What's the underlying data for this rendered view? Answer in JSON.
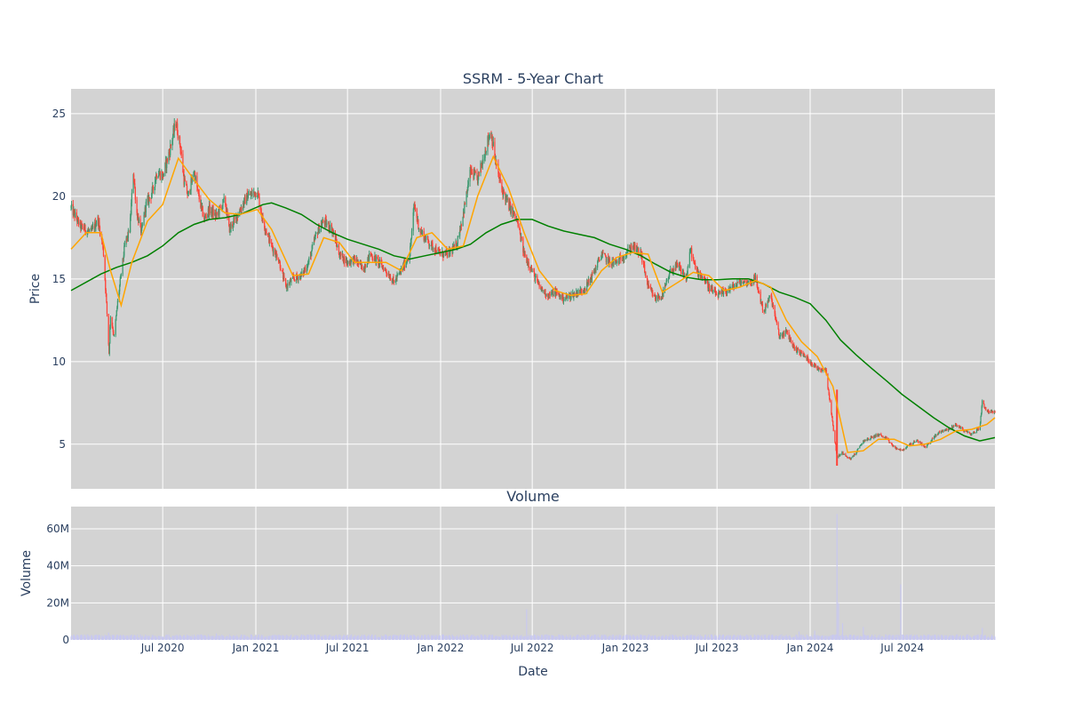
{
  "chart_data": [
    {
      "type": "candlestick",
      "title": "SSRM - 5-Year Chart",
      "ylabel": "Price",
      "x_range": [
        "2020-01-02",
        "2024-12-31"
      ],
      "ylim": [
        2.3,
        26.5
      ],
      "y_ticks": [
        5,
        10,
        15,
        20,
        25
      ],
      "grid": true,
      "colors": {
        "up": "#3d9970",
        "down": "#ff4136",
        "ma_short": "#ffa500",
        "ma_long": "#008000",
        "background": "#d3d3d3",
        "grid": "#ffffff"
      },
      "close_series": [
        [
          "2020-01-02",
          19.3
        ],
        [
          "2020-01-20",
          18.2
        ],
        [
          "2020-02-10",
          17.8
        ],
        [
          "2020-02-24",
          18.6
        ],
        [
          "2020-03-05",
          17.0
        ],
        [
          "2020-03-12",
          13.5
        ],
        [
          "2020-03-17",
          10.5
        ],
        [
          "2020-03-20",
          12.8
        ],
        [
          "2020-03-27",
          11.5
        ],
        [
          "2020-04-03",
          13.6
        ],
        [
          "2020-04-17",
          17.0
        ],
        [
          "2020-04-27",
          18.0
        ],
        [
          "2020-05-04",
          21.5
        ],
        [
          "2020-05-11",
          19.0
        ],
        [
          "2020-05-20",
          17.8
        ],
        [
          "2020-05-29",
          19.5
        ],
        [
          "2020-06-10",
          20.2
        ],
        [
          "2020-06-20",
          21.5
        ],
        [
          "2020-07-01",
          21.2
        ],
        [
          "2020-07-15",
          22.8
        ],
        [
          "2020-07-27",
          24.5
        ],
        [
          "2020-08-05",
          23.0
        ],
        [
          "2020-08-12",
          21.0
        ],
        [
          "2020-08-20",
          20.0
        ],
        [
          "2020-09-01",
          21.5
        ],
        [
          "2020-09-10",
          20.0
        ],
        [
          "2020-09-21",
          18.6
        ],
        [
          "2020-10-01",
          19.2
        ],
        [
          "2020-10-15",
          18.8
        ],
        [
          "2020-11-01",
          19.8
        ],
        [
          "2020-11-09",
          18.0
        ],
        [
          "2020-11-20",
          18.5
        ],
        [
          "2020-12-01",
          19.2
        ],
        [
          "2020-12-15",
          20.0
        ],
        [
          "2021-01-04",
          20.3
        ],
        [
          "2021-01-15",
          18.5
        ],
        [
          "2021-02-01",
          17.0
        ],
        [
          "2021-02-15",
          16.2
        ],
        [
          "2021-03-01",
          14.5
        ],
        [
          "2021-03-15",
          15.0
        ],
        [
          "2021-04-01",
          15.2
        ],
        [
          "2021-04-15",
          16.0
        ],
        [
          "2021-05-01",
          17.8
        ],
        [
          "2021-05-15",
          18.5
        ],
        [
          "2021-06-01",
          18.0
        ],
        [
          "2021-06-15",
          16.5
        ],
        [
          "2021-07-01",
          16.0
        ],
        [
          "2021-07-15",
          16.2
        ],
        [
          "2021-08-01",
          15.6
        ],
        [
          "2021-08-15",
          16.5
        ],
        [
          "2021-09-01",
          16.0
        ],
        [
          "2021-09-15",
          15.5
        ],
        [
          "2021-10-01",
          14.8
        ],
        [
          "2021-10-15",
          15.5
        ],
        [
          "2021-11-01",
          16.5
        ],
        [
          "2021-11-10",
          19.5
        ],
        [
          "2021-11-20",
          18.0
        ],
        [
          "2021-12-01",
          17.5
        ],
        [
          "2021-12-15",
          17.0
        ],
        [
          "2022-01-01",
          16.5
        ],
        [
          "2022-01-15",
          16.5
        ],
        [
          "2022-02-01",
          17.0
        ],
        [
          "2022-02-15",
          19.0
        ],
        [
          "2022-03-01",
          21.5
        ],
        [
          "2022-03-15",
          21.0
        ],
        [
          "2022-04-01",
          23.0
        ],
        [
          "2022-04-10",
          24.0
        ],
        [
          "2022-04-20",
          22.0
        ],
        [
          "2022-05-01",
          20.5
        ],
        [
          "2022-05-15",
          19.5
        ],
        [
          "2022-06-01",
          18.5
        ],
        [
          "2022-06-15",
          16.5
        ],
        [
          "2022-07-01",
          15.5
        ],
        [
          "2022-07-15",
          14.5
        ],
        [
          "2022-08-01",
          14.0
        ],
        [
          "2022-08-15",
          14.2
        ],
        [
          "2022-09-01",
          13.8
        ],
        [
          "2022-09-15",
          14.0
        ],
        [
          "2022-10-01",
          14.2
        ],
        [
          "2022-10-15",
          14.5
        ],
        [
          "2022-11-01",
          15.5
        ],
        [
          "2022-11-15",
          16.5
        ],
        [
          "2022-12-01",
          16.0
        ],
        [
          "2022-12-15",
          16.0
        ],
        [
          "2023-01-01",
          16.5
        ],
        [
          "2023-01-15",
          17.0
        ],
        [
          "2023-02-01",
          16.5
        ],
        [
          "2023-02-15",
          14.5
        ],
        [
          "2023-03-01",
          13.8
        ],
        [
          "2023-03-15",
          14.0
        ],
        [
          "2023-04-01",
          15.5
        ],
        [
          "2023-04-15",
          15.8
        ],
        [
          "2023-05-01",
          15.0
        ],
        [
          "2023-05-10",
          16.8
        ],
        [
          "2023-05-20",
          15.5
        ],
        [
          "2023-06-01",
          15.2
        ],
        [
          "2023-06-15",
          14.5
        ],
        [
          "2023-07-01",
          14.0
        ],
        [
          "2023-07-15",
          14.2
        ],
        [
          "2023-08-01",
          14.5
        ],
        [
          "2023-08-15",
          14.8
        ],
        [
          "2023-09-01",
          14.8
        ],
        [
          "2023-09-15",
          15.0
        ],
        [
          "2023-10-01",
          13.0
        ],
        [
          "2023-10-15",
          14.0
        ],
        [
          "2023-11-01",
          11.5
        ],
        [
          "2023-11-15",
          11.8
        ],
        [
          "2023-12-01",
          10.8
        ],
        [
          "2023-12-15",
          10.5
        ],
        [
          "2024-01-01",
          10.0
        ],
        [
          "2024-01-15",
          9.6
        ],
        [
          "2024-02-01",
          9.5
        ],
        [
          "2024-02-23",
          4.2
        ],
        [
          "2024-03-05",
          4.5
        ],
        [
          "2024-03-20",
          4.1
        ],
        [
          "2024-04-01",
          4.5
        ],
        [
          "2024-04-15",
          5.2
        ],
        [
          "2024-05-01",
          5.4
        ],
        [
          "2024-05-15",
          5.6
        ],
        [
          "2024-06-01",
          5.3
        ],
        [
          "2024-06-15",
          4.8
        ],
        [
          "2024-07-01",
          4.6
        ],
        [
          "2024-07-15",
          5.0
        ],
        [
          "2024-08-01",
          5.2
        ],
        [
          "2024-08-15",
          4.8
        ],
        [
          "2024-09-01",
          5.4
        ],
        [
          "2024-09-15",
          5.8
        ],
        [
          "2024-10-01",
          5.9
        ],
        [
          "2024-10-15",
          6.2
        ],
        [
          "2024-11-01",
          5.8
        ],
        [
          "2024-11-15",
          5.6
        ],
        [
          "2024-12-01",
          6.0
        ],
        [
          "2024-12-06",
          7.6
        ],
        [
          "2024-12-15",
          7.0
        ],
        [
          "2024-12-31",
          6.9
        ]
      ],
      "ma_short": [
        [
          "2020-01-02",
          16.8
        ],
        [
          "2020-02-01",
          17.8
        ],
        [
          "2020-03-01",
          17.8
        ],
        [
          "2020-03-20",
          15.5
        ],
        [
          "2020-04-10",
          13.4
        ],
        [
          "2020-05-01",
          16.0
        ],
        [
          "2020-06-01",
          18.5
        ],
        [
          "2020-07-01",
          19.5
        ],
        [
          "2020-08-01",
          22.3
        ],
        [
          "2020-09-01",
          21.0
        ],
        [
          "2020-10-01",
          19.8
        ],
        [
          "2020-11-01",
          19.0
        ],
        [
          "2020-12-01",
          18.9
        ],
        [
          "2021-01-04",
          19.2
        ],
        [
          "2021-02-01",
          18.0
        ],
        [
          "2021-03-15",
          15.2
        ],
        [
          "2021-04-15",
          15.3
        ],
        [
          "2021-05-15",
          17.5
        ],
        [
          "2021-06-15",
          17.2
        ],
        [
          "2021-07-15",
          16.0
        ],
        [
          "2021-08-15",
          16.0
        ],
        [
          "2021-09-15",
          16.0
        ],
        [
          "2021-10-15",
          15.5
        ],
        [
          "2021-11-15",
          17.5
        ],
        [
          "2021-12-15",
          17.8
        ],
        [
          "2022-01-15",
          16.8
        ],
        [
          "2022-02-15",
          17.0
        ],
        [
          "2022-03-15",
          20.0
        ],
        [
          "2022-04-15",
          22.4
        ],
        [
          "2022-05-15",
          20.5
        ],
        [
          "2022-06-15",
          17.8
        ],
        [
          "2022-07-15",
          15.5
        ],
        [
          "2022-08-15",
          14.3
        ],
        [
          "2022-09-15",
          14.0
        ],
        [
          "2022-10-15",
          14.1
        ],
        [
          "2022-11-15",
          15.5
        ],
        [
          "2022-12-15",
          16.3
        ],
        [
          "2023-01-15",
          16.6
        ],
        [
          "2023-02-15",
          16.5
        ],
        [
          "2023-03-15",
          14.2
        ],
        [
          "2023-04-15",
          14.8
        ],
        [
          "2023-05-15",
          15.4
        ],
        [
          "2023-06-15",
          15.2
        ],
        [
          "2023-07-15",
          14.3
        ],
        [
          "2023-08-15",
          14.5
        ],
        [
          "2023-09-15",
          14.9
        ],
        [
          "2023-10-15",
          14.5
        ],
        [
          "2023-11-15",
          12.5
        ],
        [
          "2023-12-15",
          11.2
        ],
        [
          "2024-01-15",
          10.3
        ],
        [
          "2024-02-15",
          8.5
        ],
        [
          "2024-03-15",
          4.5
        ],
        [
          "2024-04-15",
          4.6
        ],
        [
          "2024-05-15",
          5.3
        ],
        [
          "2024-06-15",
          5.3
        ],
        [
          "2024-07-15",
          4.9
        ],
        [
          "2024-08-15",
          5.0
        ],
        [
          "2024-09-15",
          5.3
        ],
        [
          "2024-10-15",
          5.8
        ],
        [
          "2024-11-15",
          5.9
        ],
        [
          "2024-12-15",
          6.2
        ],
        [
          "2024-12-31",
          6.6
        ]
      ],
      "ma_long": [
        [
          "2020-01-02",
          14.3
        ],
        [
          "2020-03-01",
          15.3
        ],
        [
          "2020-04-01",
          15.7
        ],
        [
          "2020-05-01",
          16.0
        ],
        [
          "2020-06-01",
          16.4
        ],
        [
          "2020-07-01",
          17.0
        ],
        [
          "2020-08-01",
          17.8
        ],
        [
          "2020-09-01",
          18.3
        ],
        [
          "2020-10-01",
          18.6
        ],
        [
          "2020-11-01",
          18.7
        ],
        [
          "2020-12-01",
          18.9
        ],
        [
          "2021-01-15",
          19.5
        ],
        [
          "2021-02-01",
          19.6
        ],
        [
          "2021-03-01",
          19.3
        ],
        [
          "2021-04-01",
          18.9
        ],
        [
          "2021-05-01",
          18.3
        ],
        [
          "2021-06-01",
          17.8
        ],
        [
          "2021-07-01",
          17.4
        ],
        [
          "2021-08-01",
          17.1
        ],
        [
          "2021-09-01",
          16.8
        ],
        [
          "2021-10-01",
          16.4
        ],
        [
          "2021-11-01",
          16.2
        ],
        [
          "2021-12-01",
          16.4
        ],
        [
          "2022-01-01",
          16.6
        ],
        [
          "2022-02-01",
          16.8
        ],
        [
          "2022-03-01",
          17.1
        ],
        [
          "2022-04-01",
          17.8
        ],
        [
          "2022-05-01",
          18.3
        ],
        [
          "2022-06-01",
          18.6
        ],
        [
          "2022-07-01",
          18.6
        ],
        [
          "2022-08-01",
          18.2
        ],
        [
          "2022-09-01",
          17.9
        ],
        [
          "2022-10-01",
          17.7
        ],
        [
          "2022-11-01",
          17.5
        ],
        [
          "2022-12-01",
          17.1
        ],
        [
          "2023-01-01",
          16.8
        ],
        [
          "2023-02-01",
          16.4
        ],
        [
          "2023-03-01",
          15.9
        ],
        [
          "2023-04-01",
          15.4
        ],
        [
          "2023-05-01",
          15.1
        ],
        [
          "2023-06-01",
          14.95
        ],
        [
          "2023-07-01",
          14.95
        ],
        [
          "2023-08-01",
          15.0
        ],
        [
          "2023-09-01",
          15.0
        ],
        [
          "2023-10-01",
          14.7
        ],
        [
          "2023-11-01",
          14.2
        ],
        [
          "2023-12-01",
          13.9
        ],
        [
          "2024-01-01",
          13.5
        ],
        [
          "2024-02-01",
          12.5
        ],
        [
          "2024-03-01",
          11.3
        ],
        [
          "2024-04-01",
          10.4
        ],
        [
          "2024-05-01",
          9.6
        ],
        [
          "2024-06-01",
          8.8
        ],
        [
          "2024-07-01",
          8.0
        ],
        [
          "2024-08-01",
          7.3
        ],
        [
          "2024-09-01",
          6.6
        ],
        [
          "2024-10-01",
          6.0
        ],
        [
          "2024-11-01",
          5.5
        ],
        [
          "2024-12-01",
          5.2
        ],
        [
          "2024-12-31",
          5.4
        ]
      ]
    },
    {
      "type": "bar",
      "title": "Volume",
      "xlabel": "Date",
      "ylabel": "Volume",
      "ylim": [
        0,
        72000000
      ],
      "y_ticks": [
        0,
        20000000,
        40000000,
        60000000
      ],
      "y_tick_labels": [
        "0",
        "20M",
        "40M",
        "60M"
      ],
      "bar_color": "#c8c8f0",
      "x_ticks": [
        "2020-07-01",
        "2021-01-01",
        "2021-07-01",
        "2022-01-01",
        "2022-07-01",
        "2023-01-01",
        "2023-07-01",
        "2024-01-01",
        "2024-07-01"
      ],
      "x_tick_labels": [
        "Jul 2020",
        "Jan 2021",
        "Jul 2021",
        "Jan 2022",
        "Jul 2022",
        "Jan 2023",
        "Jul 2023",
        "Jan 2024",
        "Jul 2024"
      ],
      "spikes": [
        [
          "2020-03-16",
          4000000
        ],
        [
          "2020-10-15",
          3500000
        ],
        [
          "2022-06-20",
          16500000
        ],
        [
          "2023-12-10",
          4500000
        ],
        [
          "2024-01-10",
          5000000
        ],
        [
          "2024-02-23",
          68000000
        ],
        [
          "2024-02-26",
          20000000
        ],
        [
          "2024-03-05",
          9000000
        ],
        [
          "2024-04-15",
          7000000
        ],
        [
          "2024-06-28",
          30000000
        ],
        [
          "2024-12-06",
          6500000
        ]
      ]
    }
  ]
}
